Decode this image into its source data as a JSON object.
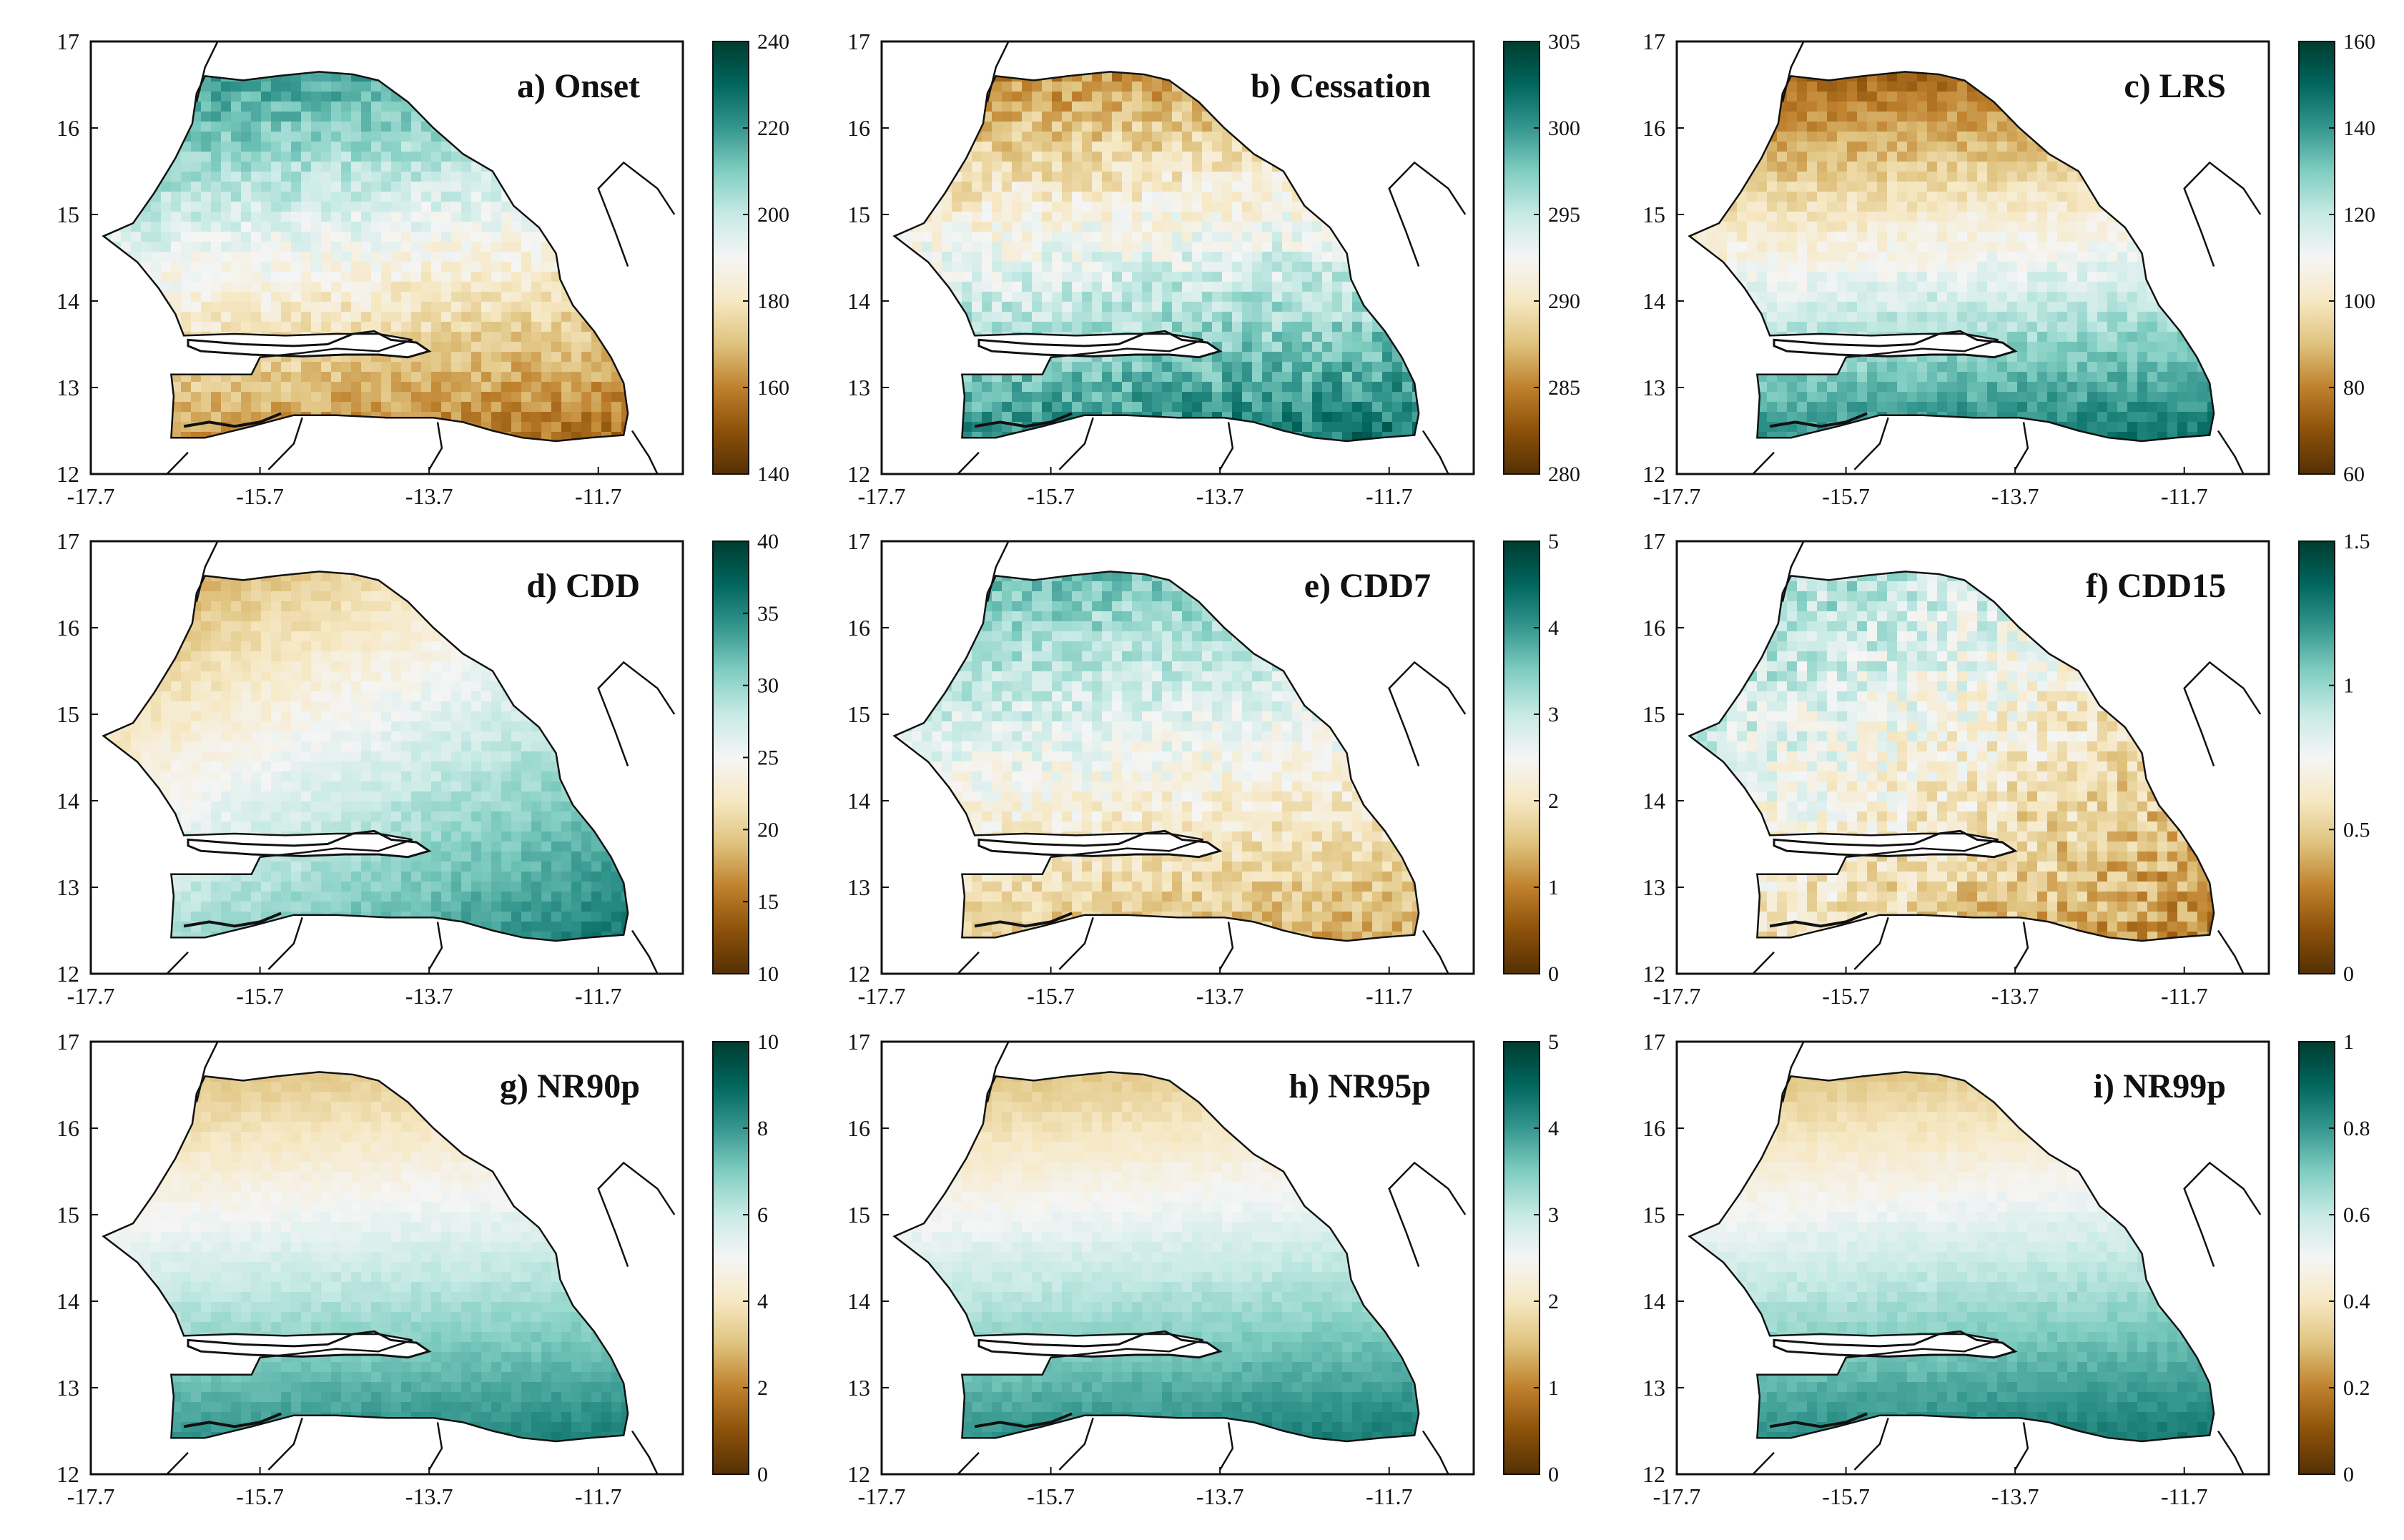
{
  "figure": {
    "description_free": true,
    "x_ticks": [
      "-17.7",
      "-15.7",
      "-13.7",
      "-11.7"
    ],
    "y_ticks": [
      "12",
      "13",
      "14",
      "15",
      "16",
      "17"
    ]
  },
  "colormap": {
    "name": "BrBG",
    "stops": [
      "#543005",
      "#8c510a",
      "#bf812d",
      "#dfc27d",
      "#f6e8c3",
      "#f5f5f5",
      "#c7eae5",
      "#80cdc1",
      "#35978f",
      "#01665e",
      "#003c30"
    ]
  },
  "chart_data": [
    {
      "type": "heatmap",
      "title": "a) Onset",
      "cbar_ticks": [
        "140",
        "160",
        "180",
        "200",
        "220",
        "240"
      ],
      "vmin": 140,
      "vmax": 240,
      "pattern": "north-high",
      "north_value": 222,
      "south_value": 155,
      "noise": 6
    },
    {
      "type": "heatmap",
      "title": "b) Cessation",
      "cbar_ticks": [
        "280",
        "285",
        "290",
        "295",
        "300",
        "305"
      ],
      "vmin": 280,
      "vmax": 305,
      "pattern": "south-high",
      "north_value": 285,
      "south_value": 302,
      "noise": 2
    },
    {
      "type": "heatmap",
      "title": "c) LRS",
      "cbar_ticks": [
        "60",
        "80",
        "100",
        "120",
        "140",
        "160"
      ],
      "vmin": 60,
      "vmax": 160,
      "pattern": "south-high",
      "north_value": 72,
      "south_value": 148,
      "noise": 5
    },
    {
      "type": "heatmap",
      "title": "d) CDD",
      "cbar_ticks": [
        "10",
        "15",
        "20",
        "25",
        "30",
        "35",
        "40"
      ],
      "vmin": 10,
      "vmax": 40,
      "pattern": "southeast-high",
      "north_value": 17,
      "south_value": 36,
      "noise": 1
    },
    {
      "type": "heatmap",
      "title": "e) CDD7",
      "cbar_ticks": [
        "0",
        "1",
        "2",
        "3",
        "4",
        "5"
      ],
      "vmin": 0,
      "vmax": 5,
      "pattern": "north-high",
      "north_value": 3.7,
      "south_value": 1.3,
      "noise": 0.35
    },
    {
      "type": "heatmap",
      "title": "f) CDD15",
      "cbar_ticks": [
        "0",
        "0.5",
        "1",
        "1.5"
      ],
      "vmin": 0,
      "vmax": 1.5,
      "pattern": "northwest-high",
      "north_value": 1.05,
      "south_value": 0.3,
      "noise": 0.15
    },
    {
      "type": "heatmap",
      "title": "g) NR90p",
      "cbar_ticks": [
        "0",
        "2",
        "4",
        "6",
        "8",
        "10"
      ],
      "vmin": 0,
      "vmax": 10,
      "pattern": "south-high",
      "north_value": 3.0,
      "south_value": 8.5,
      "noise": 0.2
    },
    {
      "type": "heatmap",
      "title": "h) NR95p",
      "cbar_ticks": [
        "0",
        "1",
        "2",
        "3",
        "4",
        "5"
      ],
      "vmin": 0,
      "vmax": 5,
      "pattern": "south-high",
      "north_value": 1.5,
      "south_value": 4.3,
      "noise": 0.1
    },
    {
      "type": "heatmap",
      "title": "i) NR99p",
      "cbar_ticks": [
        "0",
        "0.2",
        "0.4",
        "0.6",
        "0.8",
        "1"
      ],
      "vmin": 0,
      "vmax": 1,
      "pattern": "south-high",
      "north_value": 0.3,
      "south_value": 0.87,
      "noise": 0.02
    }
  ]
}
